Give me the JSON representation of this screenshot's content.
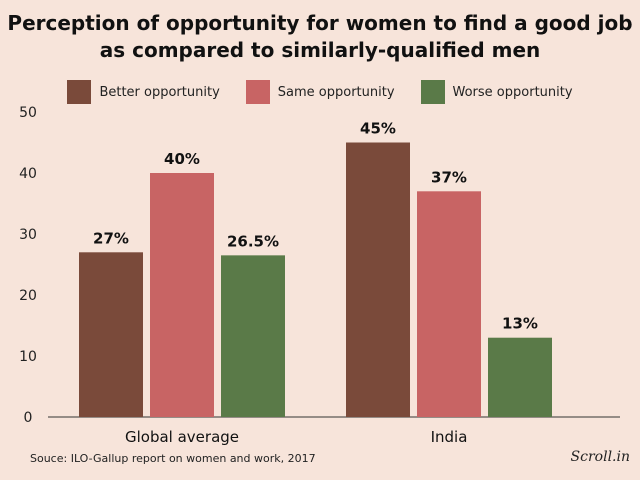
{
  "chart_data": {
    "type": "bar",
    "title": "Perception of opportunity for women to find a good job as compared to similarly-qualified men",
    "categories": [
      "Global average",
      "India"
    ],
    "series": [
      {
        "name": "Better opportunity",
        "color": "#7a4a3a",
        "values": [
          27,
          45
        ],
        "labels": [
          "27%",
          "45%"
        ]
      },
      {
        "name": "Same opportunity",
        "color": "#c86464",
        "values": [
          40,
          37
        ],
        "labels": [
          "40%",
          "37%"
        ]
      },
      {
        "name": "Worse opportunity",
        "color": "#5a7a48",
        "values": [
          26.5,
          13
        ],
        "labels": [
          "26.5%",
          "13%"
        ]
      }
    ],
    "ylim": [
      0,
      50
    ],
    "yticks": [
      0,
      10,
      20,
      30,
      40,
      50
    ],
    "grid": false,
    "legend_position": "top-center"
  },
  "source": "Souce: ILO-Gallup report on women and work, 2017",
  "logo": "Scroll.in"
}
